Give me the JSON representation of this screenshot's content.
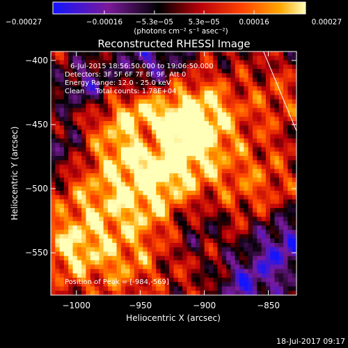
{
  "chart_data": {
    "type": "heatmap",
    "title": "Reconstructed RHESSI Image",
    "xlabel": "Heliocentric X (arcsec)",
    "ylabel": "Heliocentric Y (arcsec)",
    "xlim": [
      -1020,
      -828
    ],
    "ylim": [
      -583,
      -393
    ],
    "xticks": [
      -1000,
      -950,
      -900,
      -850
    ],
    "yticks": [
      -400,
      -450,
      -500,
      -550
    ],
    "xtick_labels": [
      "−1000",
      "−950",
      "−900",
      "−850"
    ],
    "ytick_labels": [
      "−400",
      "−450",
      "−500",
      "−550"
    ],
    "colorbar": {
      "range": [
        -0.00027,
        0.00027
      ],
      "ticks": [
        -0.00027,
        -0.00016,
        -5.3e-05,
        5.3e-05,
        0.00016,
        0.00027
      ],
      "tick_labels": [
        "−0.00027",
        "−0.00016",
        "−5.3e−05",
        "5.3e−05",
        "0.00016",
        "0.00027"
      ],
      "unit_label": "(photons cm⁻² s⁻¹ asec⁻²)",
      "colors": [
        "#1414ff",
        "#7a1a9a",
        "#000000",
        "#b8000a",
        "#ff4400",
        "#ffa800",
        "#ffffb8"
      ]
    },
    "annotations": [
      "6-Jul-2015 18:56:50.000 to 19:06:50.000",
      "Detectors: 3F 5F 6F 7F 8F 9F, Att 0",
      "Energy Range: 12.0 - 25.0 keV",
      "Clean     Total counts: 1.78E+04",
      "Position of Peak = [-984,-569]"
    ],
    "limb_line": {
      "x": [
        -855,
        -828
      ],
      "y": [
        -390,
        -455
      ]
    }
  },
  "footer": {
    "timestamp": "18-Jul-2017 09:17"
  }
}
